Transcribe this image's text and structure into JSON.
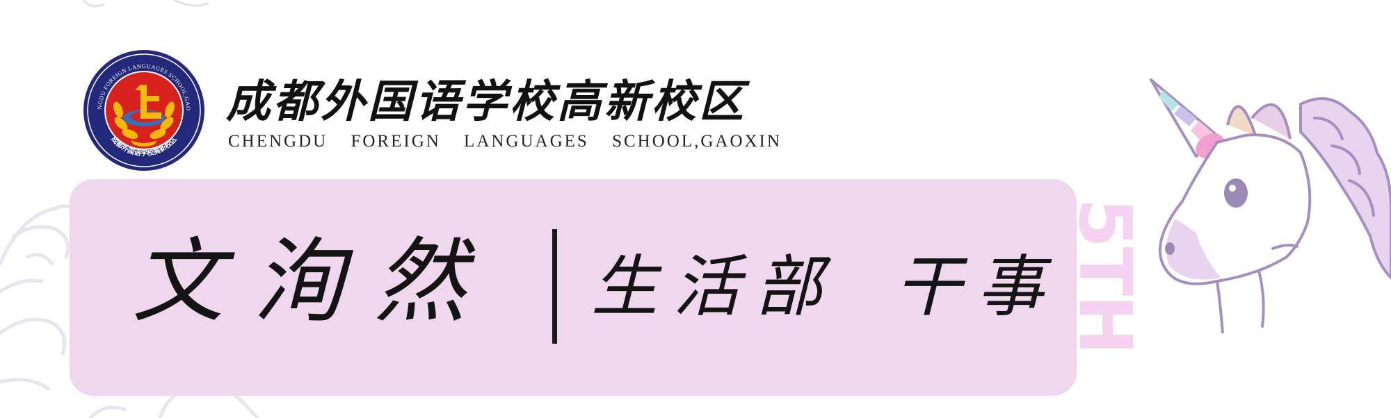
{
  "school": {
    "name_cn": "成都外国语学校高新校区",
    "name_en": "CHENGDU FOREIGN LANGUAGES SCHOOL,GAOXIN",
    "emblem_ring_text": "CHENGDU FOREIGN LANGUAGES SCHOOL,GAOXIN",
    "emblem_lower_text": "成都外国语学校高新校区"
  },
  "card": {
    "person_name": "文洵然",
    "position": "生活部 干事"
  },
  "decoration": {
    "vertical_text": "5TH"
  },
  "colors": {
    "card_bg": "#efd7ee",
    "emblem_navy": "#23287a",
    "emblem_red": "#d8201c",
    "emblem_gold": "#f2b90f",
    "unicorn_stroke": "#a58fc0",
    "deco_pink": "#f5d2f0"
  }
}
